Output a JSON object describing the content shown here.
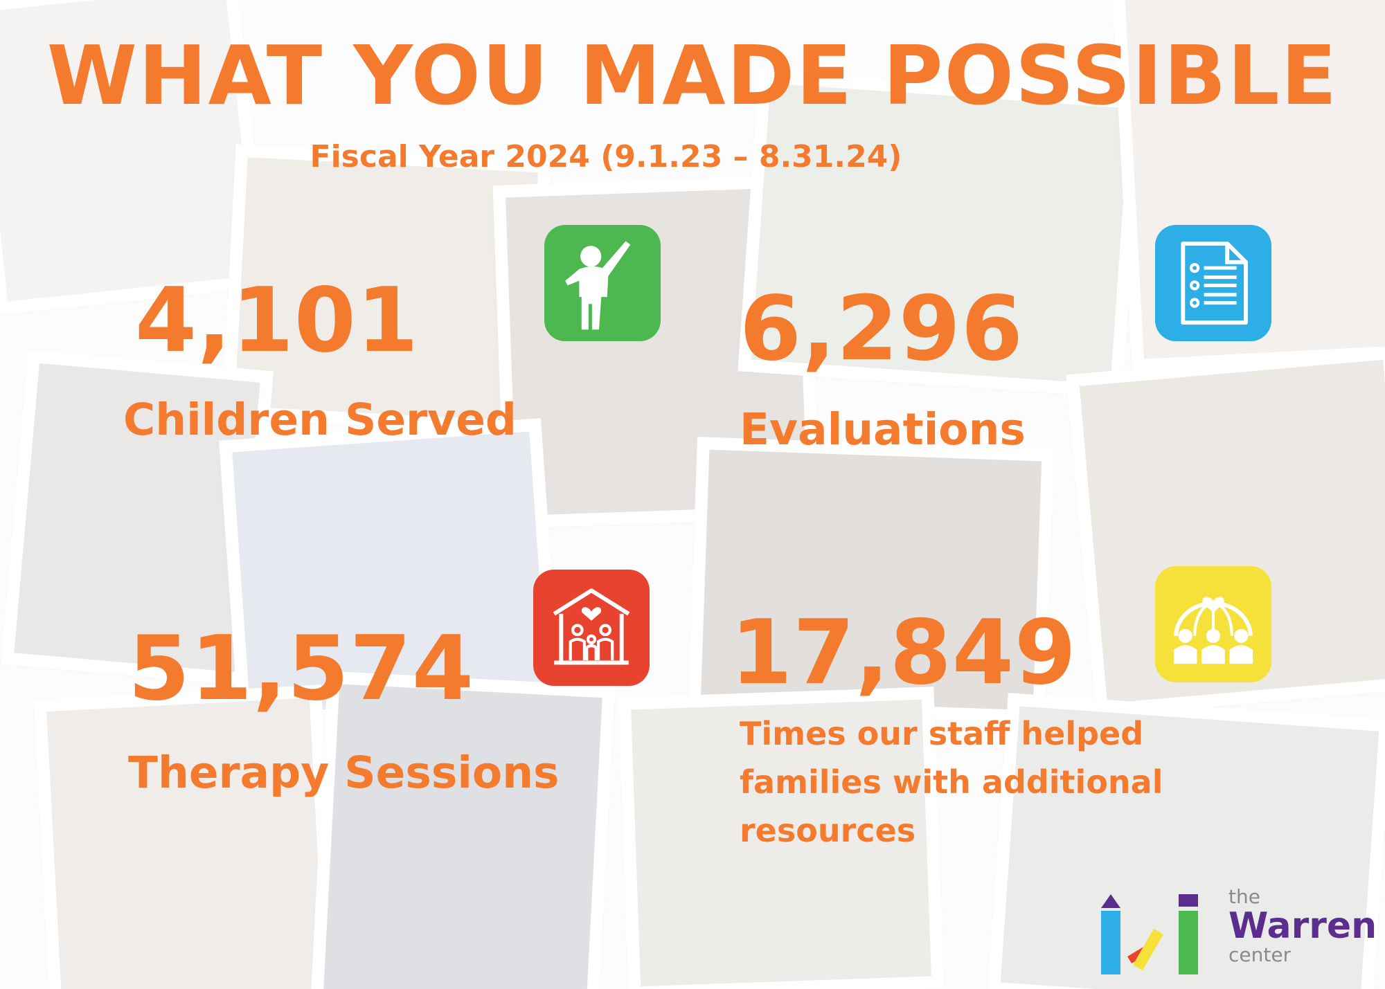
{
  "header": {
    "title": "WHAT YOU MADE POSSIBLE",
    "subtitle": "Fiscal Year 2024 (9.1.23 – 8.31.24)"
  },
  "stats": [
    {
      "value": "4,101",
      "label": "Children Served",
      "icon": "child-silhouette-icon",
      "icon_color": "#4cb84f"
    },
    {
      "value": "6,296",
      "label": "Evaluations",
      "icon": "document-checklist-icon",
      "icon_color": "#2eaee6"
    },
    {
      "value": "51,574",
      "label": "Therapy Sessions",
      "icon": "family-house-icon",
      "icon_color": "#e8432e"
    },
    {
      "value": "17,849",
      "label": "Times our staff helped families with additional resources",
      "icon": "community-globe-icon",
      "icon_color": "#f6e03a"
    }
  ],
  "logo": {
    "the": "the",
    "name": "Warren",
    "sub": "center"
  },
  "colors": {
    "accent": "#f47a2e",
    "brand_purple": "#5b2d8e"
  }
}
